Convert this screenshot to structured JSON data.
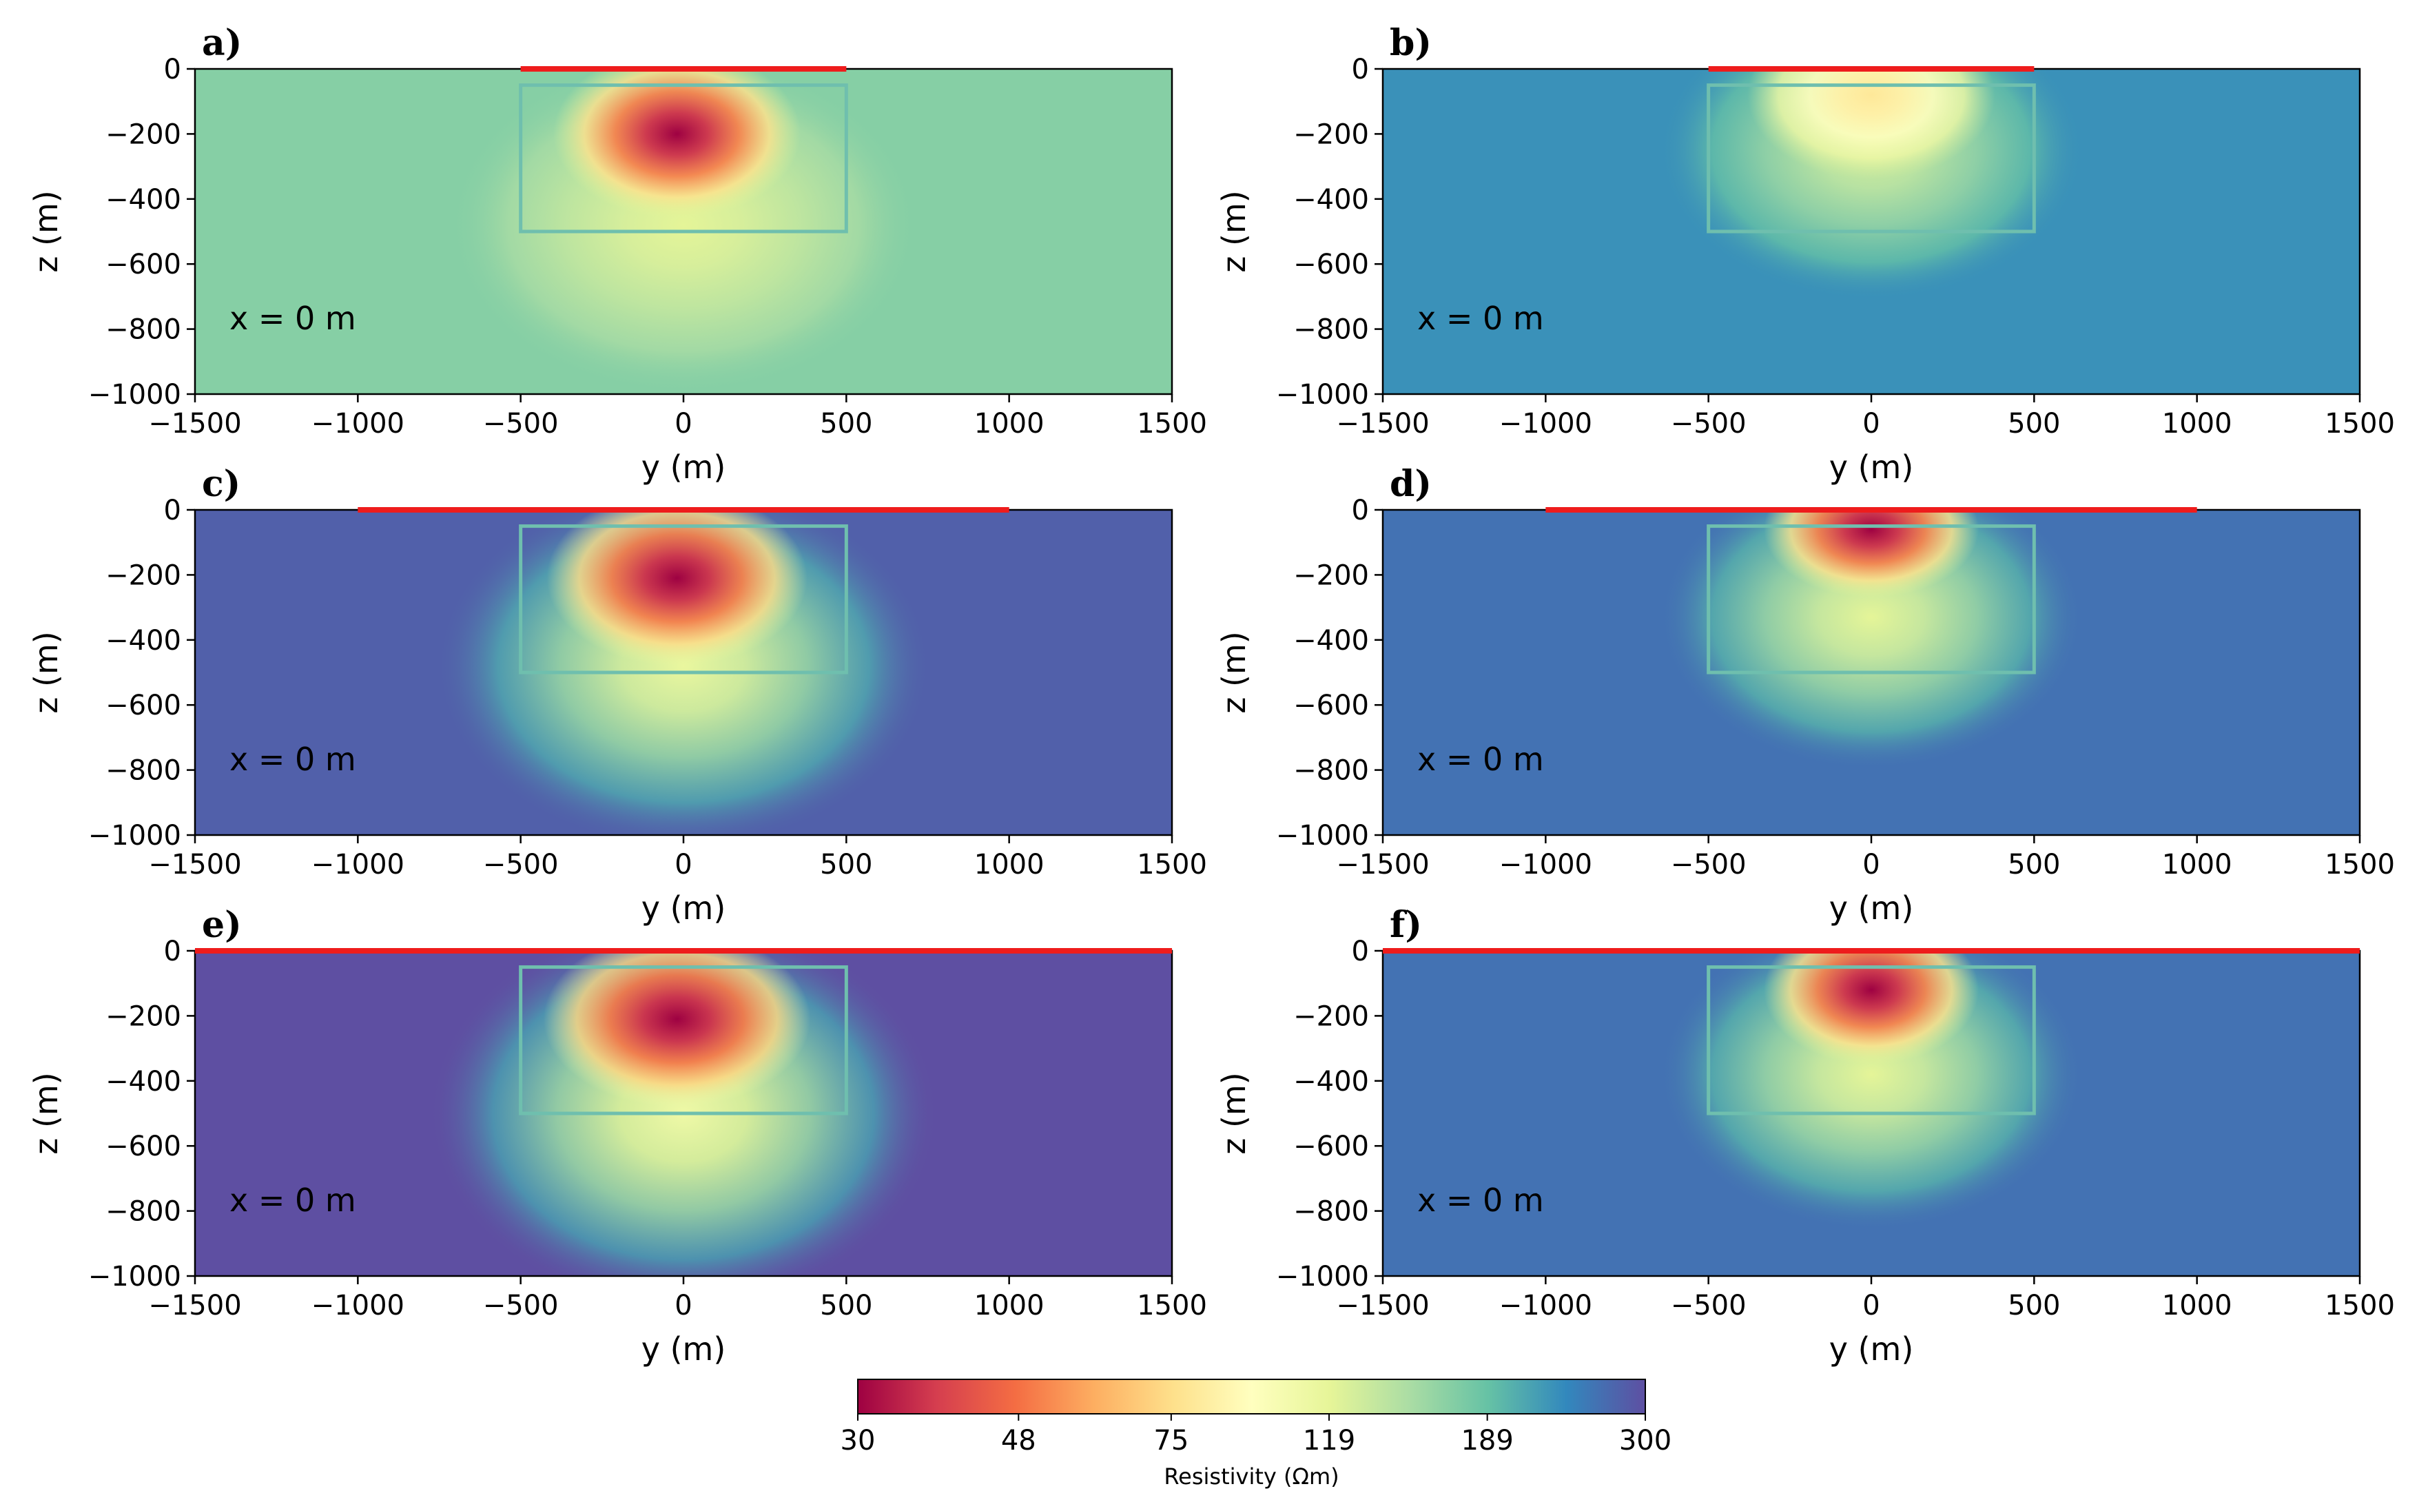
{
  "chart_data": [
    {
      "type": "heatmap",
      "panel_label": "a)",
      "annotation": "x = 0 m",
      "xlabel": "y (m)",
      "ylabel": "z (m)",
      "xlim": [
        -1500,
        1500
      ],
      "ylim": [
        -1000,
        0
      ],
      "xticks": [
        -1500,
        -1000,
        -500,
        0,
        500,
        1000,
        1500
      ],
      "yticks": [
        0,
        -200,
        -400,
        -600,
        -800,
        -1000
      ],
      "xtick_labels": [
        "−1500",
        "−1000",
        "−500",
        "0",
        "500",
        "1000",
        "1500"
      ],
      "ytick_labels": [
        "0",
        "−200",
        "−400",
        "−600",
        "−800",
        "−1000"
      ],
      "background_resistivity": 170,
      "anomaly_peak_resistivity": 30,
      "anomaly_center": [
        -20,
        -200
      ],
      "anomaly_spread": [
        380,
        260
      ],
      "halo_peak_resistivity": 120,
      "halo_center": [
        0,
        -480
      ],
      "halo_spread": [
        720,
        520
      ],
      "surface_line_y": [
        -500,
        500
      ],
      "anomaly_box": {
        "y": [
          -500,
          500
        ],
        "z": [
          -50,
          -500
        ]
      }
    },
    {
      "type": "heatmap",
      "panel_label": "b)",
      "annotation": "x = 0 m",
      "xlabel": "y (m)",
      "ylabel": "z (m)",
      "xlim": [
        -1500,
        1500
      ],
      "ylim": [
        -1000,
        0
      ],
      "xticks": [
        -1500,
        -1000,
        -500,
        0,
        500,
        1000,
        1500
      ],
      "yticks": [
        0,
        -200,
        -400,
        -600,
        -800,
        -1000
      ],
      "xtick_labels": [
        "−1500",
        "−1000",
        "−500",
        "0",
        "500",
        "1000",
        "1500"
      ],
      "ytick_labels": [
        "0",
        "−200",
        "−400",
        "−600",
        "−800",
        "−1000"
      ],
      "background_resistivity": 230,
      "anomaly_peak_resistivity": 80,
      "anomaly_center": [
        0,
        -80
      ],
      "anomaly_spread": [
        380,
        260
      ],
      "halo_peak_resistivity": 130,
      "halo_center": [
        0,
        -250
      ],
      "halo_spread": [
        650,
        460
      ],
      "surface_line_y": [
        -500,
        500
      ],
      "anomaly_box": {
        "y": [
          -500,
          500
        ],
        "z": [
          -50,
          -500
        ]
      }
    },
    {
      "type": "heatmap",
      "panel_label": "c)",
      "annotation": "x = 0 m",
      "xlabel": "y (m)",
      "ylabel": "z (m)",
      "xlim": [
        -1500,
        1500
      ],
      "ylim": [
        -1000,
        0
      ],
      "xticks": [
        -1500,
        -1000,
        -500,
        0,
        500,
        1000,
        1500
      ],
      "yticks": [
        0,
        -200,
        -400,
        -600,
        -800,
        -1000
      ],
      "xtick_labels": [
        "−1500",
        "−1000",
        "−500",
        "0",
        "500",
        "1000",
        "1500"
      ],
      "ytick_labels": [
        "0",
        "−200",
        "−400",
        "−600",
        "−800",
        "−1000"
      ],
      "background_resistivity": 280,
      "anomaly_peak_resistivity": 30,
      "anomaly_center": [
        -20,
        -210
      ],
      "anomaly_spread": [
        400,
        270
      ],
      "halo_peak_resistivity": 115,
      "halo_center": [
        0,
        -480
      ],
      "halo_spread": [
        760,
        560
      ],
      "surface_line_y": [
        -1000,
        1000
      ],
      "anomaly_box": {
        "y": [
          -500,
          500
        ],
        "z": [
          -50,
          -500
        ]
      }
    },
    {
      "type": "heatmap",
      "panel_label": "d)",
      "annotation": "x = 0 m",
      "xlabel": "y (m)",
      "ylabel": "z (m)",
      "xlim": [
        -1500,
        1500
      ],
      "ylim": [
        -1000,
        0
      ],
      "xticks": [
        -1500,
        -1000,
        -500,
        0,
        500,
        1000,
        1500
      ],
      "yticks": [
        0,
        -200,
        -400,
        -600,
        -800,
        -1000
      ],
      "xtick_labels": [
        "−1500",
        "−1000",
        "−500",
        "0",
        "500",
        "1000",
        "1500"
      ],
      "ytick_labels": [
        "0",
        "−200",
        "−400",
        "−600",
        "−800",
        "−1000"
      ],
      "background_resistivity": 260,
      "anomaly_peak_resistivity": 30,
      "anomaly_center": [
        0,
        -60
      ],
      "anomaly_spread": [
        330,
        210
      ],
      "halo_peak_resistivity": 120,
      "halo_center": [
        0,
        -330
      ],
      "halo_spread": [
        650,
        470
      ],
      "surface_line_y": [
        -1000,
        1000
      ],
      "anomaly_box": {
        "y": [
          -500,
          500
        ],
        "z": [
          -50,
          -500
        ]
      }
    },
    {
      "type": "heatmap",
      "panel_label": "e)",
      "annotation": "x = 0 m",
      "xlabel": "y (m)",
      "ylabel": "z (m)",
      "xlim": [
        -1500,
        1500
      ],
      "ylim": [
        -1000,
        0
      ],
      "xticks": [
        -1500,
        -1000,
        -500,
        0,
        500,
        1000,
        1500
      ],
      "yticks": [
        0,
        -200,
        -400,
        -600,
        -800,
        -1000
      ],
      "xtick_labels": [
        "−1500",
        "−1000",
        "−500",
        "0",
        "500",
        "1000",
        "1500"
      ],
      "ytick_labels": [
        "0",
        "−200",
        "−400",
        "−600",
        "−800",
        "−1000"
      ],
      "background_resistivity": 300,
      "anomaly_peak_resistivity": 30,
      "anomaly_center": [
        -20,
        -210
      ],
      "anomaly_spread": [
        410,
        270
      ],
      "halo_peak_resistivity": 110,
      "halo_center": [
        0,
        -500
      ],
      "halo_spread": [
        780,
        600
      ],
      "surface_line_y": [
        -1500,
        1500
      ],
      "anomaly_box": {
        "y": [
          -500,
          500
        ],
        "z": [
          -50,
          -500
        ]
      }
    },
    {
      "type": "heatmap",
      "panel_label": "f)",
      "annotation": "x = 0 m",
      "xlabel": "y (m)",
      "ylabel": "z (m)",
      "xlim": [
        -1500,
        1500
      ],
      "ylim": [
        -1000,
        0
      ],
      "xticks": [
        -1500,
        -1000,
        -500,
        0,
        500,
        1000,
        1500
      ],
      "yticks": [
        0,
        -200,
        -400,
        -600,
        -800,
        -1000
      ],
      "xtick_labels": [
        "−1500",
        "−1000",
        "−500",
        "0",
        "500",
        "1000",
        "1500"
      ],
      "ytick_labels": [
        "0",
        "−200",
        "−400",
        "−600",
        "−800",
        "−1000"
      ],
      "background_resistivity": 260,
      "anomaly_peak_resistivity": 30,
      "anomaly_center": [
        0,
        -120
      ],
      "anomaly_spread": [
        330,
        230
      ],
      "halo_peak_resistivity": 120,
      "halo_center": [
        0,
        -380
      ],
      "halo_spread": [
        650,
        480
      ],
      "surface_line_y": [
        -1500,
        1500
      ],
      "anomaly_box": {
        "y": [
          -500,
          500
        ],
        "z": [
          -50,
          -500
        ]
      }
    }
  ],
  "colorbar": {
    "label": "Resistivity (Ωm)",
    "ticks": [
      30,
      48,
      75,
      119,
      189,
      300
    ],
    "tick_labels": [
      "30",
      "48",
      "75",
      "119",
      "189",
      "300"
    ],
    "range": [
      30,
      300
    ],
    "scale": "log",
    "colormap": "Spectral"
  },
  "colors": {
    "surface_line": "#ee1c1c",
    "anomaly_box": "#6fbfae",
    "colormap_stops": [
      "#9e0142",
      "#d53e4f",
      "#f46d43",
      "#fdae61",
      "#fee08b",
      "#ffffbf",
      "#e6f598",
      "#abdda4",
      "#66c2a5",
      "#3288bd",
      "#5e4fa2"
    ]
  }
}
